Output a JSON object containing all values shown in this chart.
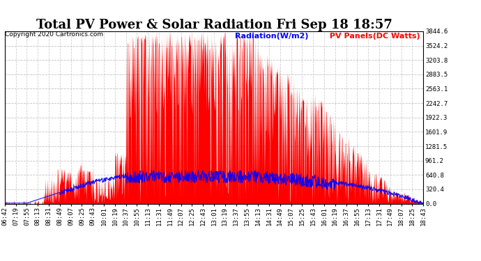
{
  "title": "Total PV Power & Solar Radiation Fri Sep 18 18:57",
  "copyright": "Copyright 2020 Cartronics.com",
  "legend_radiation": "Radiation(W/m2)",
  "legend_pv": " PV Panels(DC Watts)",
  "legend_radiation_color": "blue",
  "legend_pv_color": "red",
  "background_color": "#ffffff",
  "grid_color": "#bbbbbb",
  "right_yticks": [
    0.0,
    320.4,
    640.8,
    961.2,
    1281.5,
    1601.9,
    1922.3,
    2242.7,
    2563.1,
    2883.5,
    3203.8,
    3524.2,
    3844.6
  ],
  "ymax": 3844.6,
  "ymin": 0.0,
  "xtick_labels": [
    "06:42",
    "07:19",
    "07:55",
    "08:13",
    "08:31",
    "08:49",
    "09:07",
    "09:25",
    "09:43",
    "10:01",
    "10:19",
    "10:37",
    "10:55",
    "11:13",
    "11:31",
    "11:49",
    "12:07",
    "12:25",
    "12:43",
    "13:01",
    "13:19",
    "13:37",
    "13:55",
    "14:13",
    "14:31",
    "14:49",
    "15:07",
    "15:25",
    "15:43",
    "16:01",
    "16:19",
    "16:37",
    "16:55",
    "17:13",
    "17:31",
    "17:49",
    "18:07",
    "18:25",
    "18:43"
  ],
  "title_fontsize": 13,
  "tick_fontsize": 6.5,
  "legend_fontsize": 8,
  "copyright_fontsize": 6.5
}
